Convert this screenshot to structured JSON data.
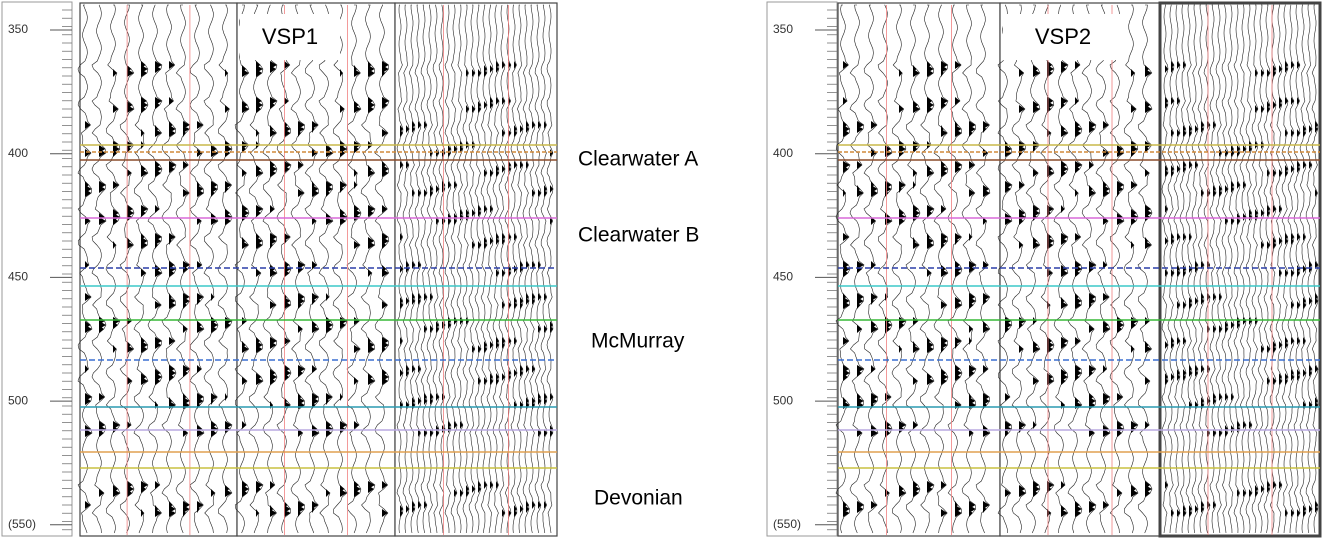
{
  "panels": [
    {
      "label": "VSP1",
      "depth_ticks": [
        "350",
        "400",
        "450",
        "500",
        "(550)"
      ]
    },
    {
      "label": "VSP2",
      "depth_ticks": [
        "350",
        "400",
        "450",
        "500",
        "(550)"
      ]
    }
  ],
  "horizons": [
    "Clearwater A",
    "Clearwater B",
    "McMurray",
    "Devonian"
  ]
}
